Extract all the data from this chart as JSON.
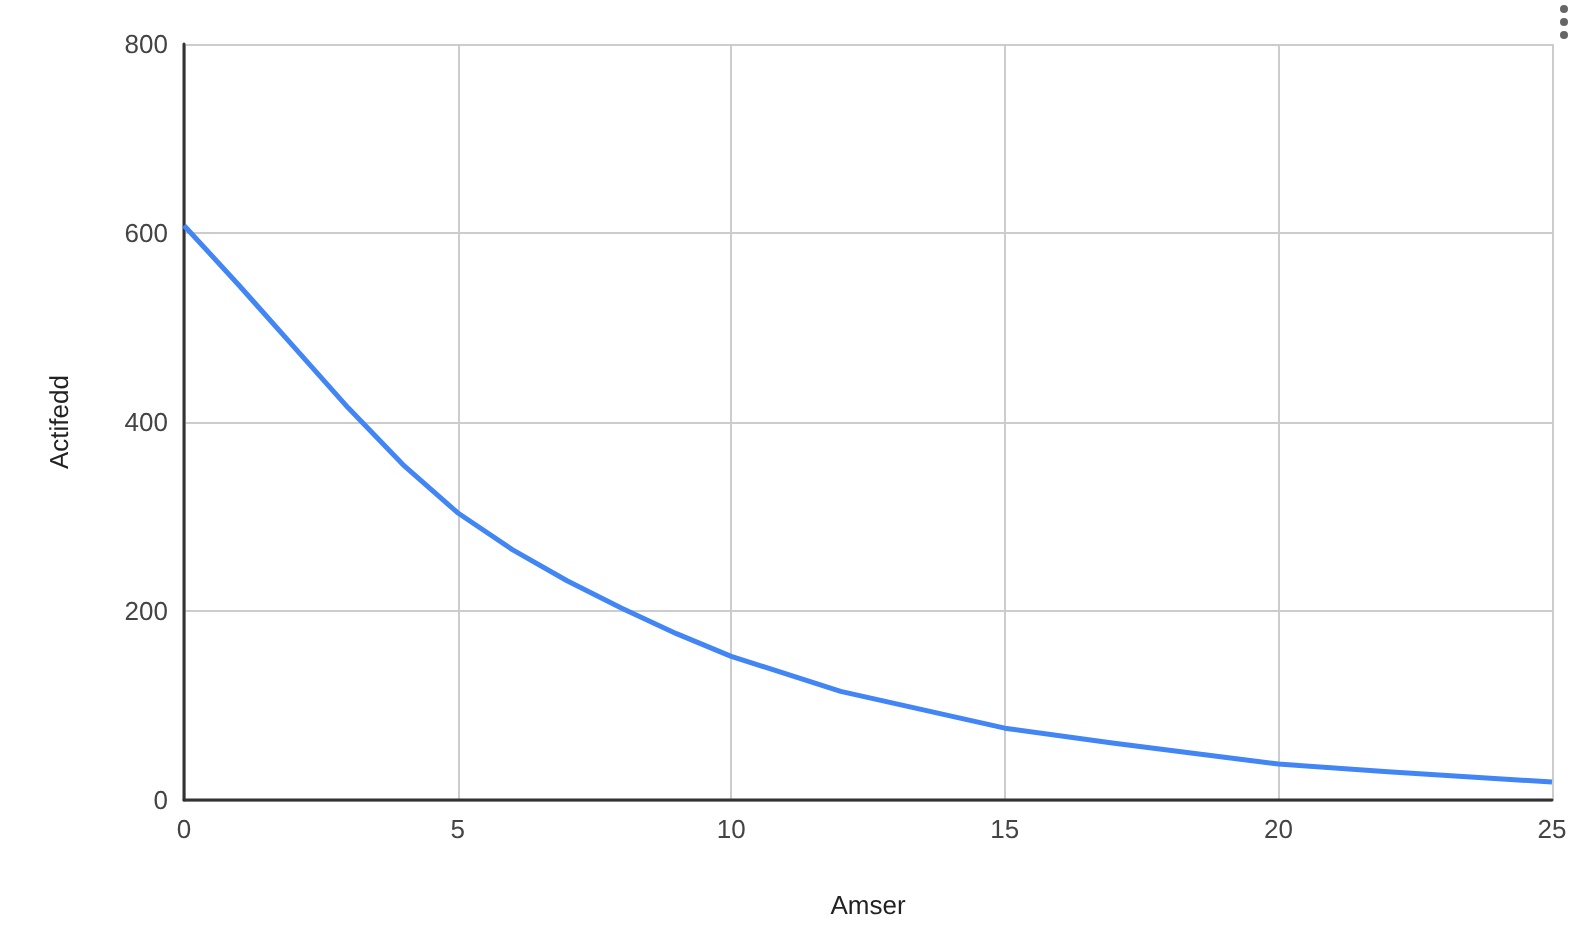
{
  "chart_data": {
    "type": "line",
    "xlabel": "Amser",
    "ylabel": "Actifedd",
    "x": [
      0,
      1,
      2,
      3,
      4,
      5,
      6,
      7,
      8,
      9,
      10,
      12,
      15,
      17,
      20,
      22,
      25
    ],
    "series": [
      {
        "color": "#4285f4",
        "values": [
          608,
          545,
          480,
          415,
          355,
          304,
          265,
          232,
          203,
          176,
          152,
          115,
          76,
          60,
          38,
          30,
          19
        ]
      }
    ],
    "xlim": [
      0,
      25
    ],
    "xticks": [
      0,
      5,
      10,
      15,
      20,
      25
    ],
    "ylim": [
      0,
      800
    ],
    "yticks": [
      0,
      200,
      400,
      600,
      800
    ],
    "grid": true,
    "marker": "none",
    "line_style": "solid"
  }
}
